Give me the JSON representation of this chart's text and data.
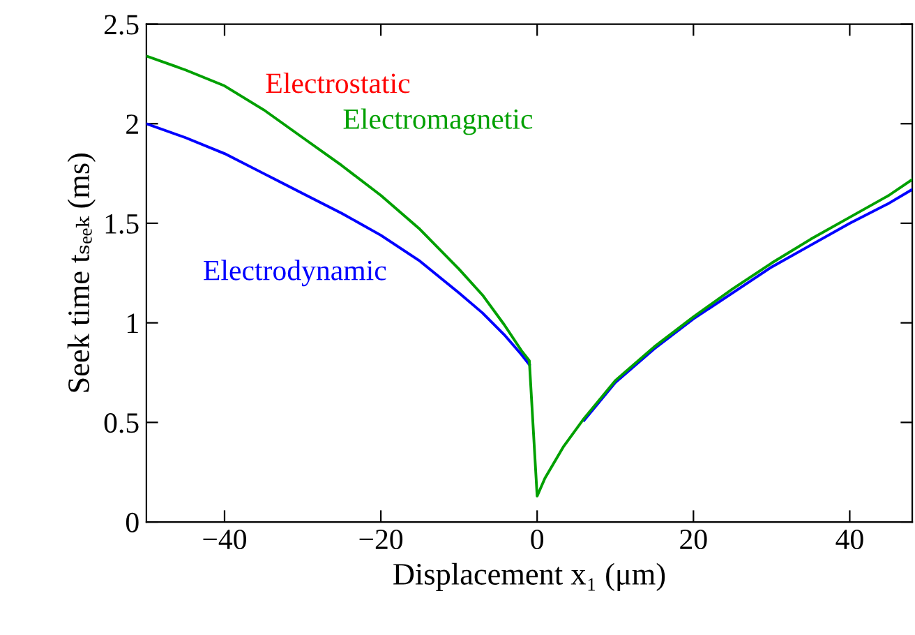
{
  "chart_data": {
    "type": "line",
    "xlabel": "Displacement x₁ (μm)",
    "ylabel": "Seek time tₛₑₑₖ (ms)",
    "x": [
      -50,
      -45,
      -40,
      -35,
      -30,
      -25,
      -20,
      -15,
      -10,
      -7,
      -4.2,
      -2,
      -1,
      0,
      1,
      3.4,
      6,
      10,
      15,
      20,
      25,
      30,
      35,
      40,
      45,
      48
    ],
    "series": [
      {
        "name": "Electrostatic",
        "color": "#ff0000",
        "values": [
          null,
          null,
          null,
          null,
          null,
          null,
          null,
          null,
          null,
          null,
          null,
          null,
          null,
          null,
          null,
          null,
          null,
          null,
          null,
          null,
          null,
          null,
          null,
          null,
          null,
          null
        ]
      },
      {
        "name": "Electromagnetic",
        "color": "#00a000",
        "values": [
          2.34,
          2.27,
          2.19,
          2.07,
          1.93,
          1.79,
          1.64,
          1.47,
          1.27,
          1.14,
          0.99,
          0.86,
          0.81,
          0.13,
          0.22,
          0.38,
          0.52,
          0.71,
          0.88,
          1.03,
          1.17,
          1.3,
          1.42,
          1.53,
          1.64,
          1.72
        ]
      },
      {
        "name": "Electrodynamic",
        "color": "#0000ff",
        "values": [
          2.0,
          1.93,
          1.85,
          1.75,
          1.65,
          1.55,
          1.44,
          1.31,
          1.15,
          1.05,
          0.94,
          0.84,
          0.79,
          null,
          null,
          null,
          0.51,
          0.7,
          0.87,
          1.02,
          1.15,
          1.28,
          1.39,
          1.5,
          1.6,
          1.67
        ]
      }
    ],
    "xlim": [
      -50,
      48
    ],
    "xticks": [
      {
        "value": -40,
        "label": "−40"
      },
      {
        "value": -20,
        "label": "−20"
      },
      0,
      20,
      40
    ],
    "ylim": [
      0,
      2.5
    ],
    "yticks": [
      0,
      0.5,
      1,
      1.5,
      2,
      2.5
    ],
    "grid": false,
    "marker": "none",
    "line_style": "solid"
  }
}
